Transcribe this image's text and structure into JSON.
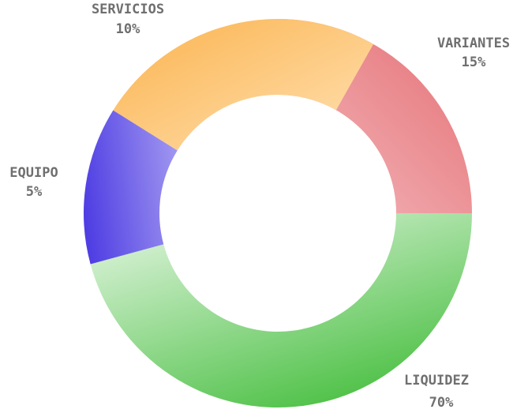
{
  "chart_data": {
    "type": "pie",
    "donut": true,
    "slices": [
      {
        "label": "VARIANTES",
        "value_label": "15%",
        "value": 15,
        "colors": [
          "#f4bcc0",
          "#e46e73"
        ]
      },
      {
        "label": "LIQUIDEZ",
        "value_label": "70%",
        "value": 70,
        "colors": [
          "#dcf3da",
          "#43bd3b"
        ]
      },
      {
        "label": "EQUIPO",
        "value_label": "5%",
        "value": 5,
        "colors": [
          "#9e94f0",
          "#4f3ee3"
        ]
      },
      {
        "label": "SERVICIOS",
        "value_label": "10%",
        "value": 10,
        "colors": [
          "#ffe1b3",
          "#fbb34e"
        ]
      }
    ],
    "label_color": "#6f6f6f"
  }
}
